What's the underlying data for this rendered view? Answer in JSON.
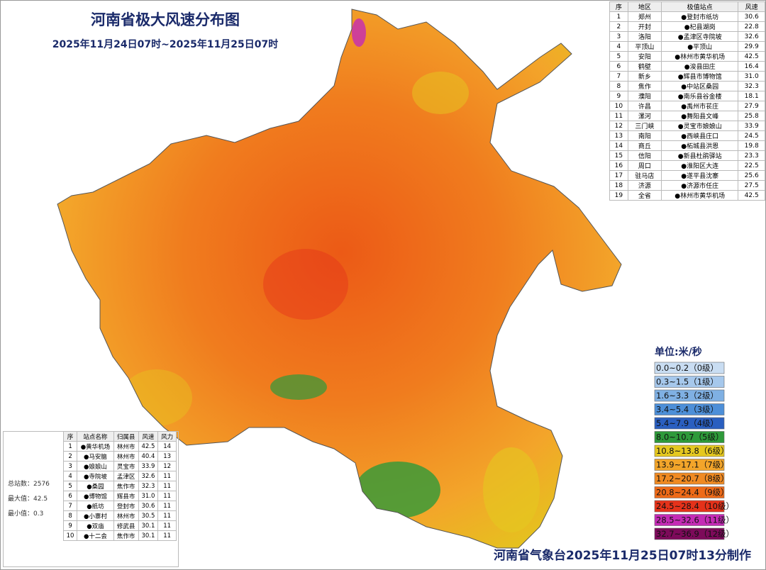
{
  "header": {
    "title": "河南省极大风速分布图",
    "subtitle": "2025年11月24日07时~2025年11月25日07时"
  },
  "city_table": {
    "columns": [
      "序",
      "地区",
      "极值站点",
      "风速"
    ],
    "rows": [
      [
        "1",
        "郑州",
        "●登封市纸坊",
        "30.6"
      ],
      [
        "2",
        "开封",
        "●杞县湖岗",
        "22.8"
      ],
      [
        "3",
        "洛阳",
        "●孟津区寺院坡",
        "32.6"
      ],
      [
        "4",
        "平顶山",
        "●平顶山",
        "29.9"
      ],
      [
        "5",
        "安阳",
        "●林州市黄华机场",
        "42.5"
      ],
      [
        "6",
        "鹤壁",
        "●浚县田庄",
        "16.4"
      ],
      [
        "7",
        "新乡",
        "●辉县市博物馆",
        "31.0"
      ],
      [
        "8",
        "焦作",
        "●中站区桑园",
        "32.3"
      ],
      [
        "9",
        "濮阳",
        "●南乐县谷金楼",
        "18.1"
      ],
      [
        "10",
        "许昌",
        "●禹州市苌庄",
        "27.9"
      ],
      [
        "11",
        "漯河",
        "●舞阳县文峰",
        "25.8"
      ],
      [
        "12",
        "三门峡",
        "●灵宝市娘娘山",
        "33.9"
      ],
      [
        "13",
        "南阳",
        "●西峡县庄口",
        "24.5"
      ],
      [
        "14",
        "商丘",
        "●柘城县洪恩",
        "19.8"
      ],
      [
        "15",
        "信阳",
        "●新县杜鹃驿站",
        "23.3"
      ],
      [
        "16",
        "周口",
        "●淮阳区大连",
        "22.5"
      ],
      [
        "17",
        "驻马店",
        "●遂平县沈寨",
        "25.6"
      ],
      [
        "18",
        "济源",
        "●济源市任庄",
        "27.5"
      ],
      [
        "19",
        "全省",
        "●林州市黄华机场",
        "42.5"
      ]
    ]
  },
  "station_table": {
    "columns": [
      "序",
      "站点名称",
      "归属县",
      "风速",
      "风力"
    ],
    "rows": [
      [
        "1",
        "●黄华机场",
        "林州市",
        "42.5",
        "14"
      ],
      [
        "2",
        "●马安脑",
        "林州市",
        "40.4",
        "13"
      ],
      [
        "3",
        "●娘娘山",
        "灵宝市",
        "33.9",
        "12"
      ],
      [
        "4",
        "●寺院坡",
        "孟津区",
        "32.6",
        "11"
      ],
      [
        "5",
        "●桑园",
        "焦作市",
        "32.3",
        "11"
      ],
      [
        "6",
        "●博物馆",
        "辉县市",
        "31.0",
        "11"
      ],
      [
        "7",
        "●纸坊",
        "登封市",
        "30.6",
        "11"
      ],
      [
        "8",
        "●小寨村",
        "林州市",
        "30.5",
        "11"
      ],
      [
        "9",
        "●双庙",
        "修武县",
        "30.1",
        "11"
      ],
      [
        "10",
        "●十二会",
        "焦作市",
        "30.1",
        "11"
      ]
    ]
  },
  "stats": [
    "总站数：2576",
    "最大值：42.5",
    "最小值：0.3"
  ],
  "legend": {
    "unit": "单位:米/秒",
    "items": [
      {
        "label": "0.0~0.2（0级）",
        "color": "#c9ddf2"
      },
      {
        "label": "0.3~1.5（1级）",
        "color": "#a6c8ec"
      },
      {
        "label": "1.6~3.3（2级）",
        "color": "#7fb0e3"
      },
      {
        "label": "3.4~5.4（3级）",
        "color": "#4d8fd8"
      },
      {
        "label": "5.4~7.9（4级）",
        "color": "#2a5fc0"
      },
      {
        "label": "8.0~10.7（5级）",
        "color": "#2e9a3a"
      },
      {
        "label": "10.8~13.8（6级）",
        "color": "#e5c81f"
      },
      {
        "label": "13.9~17.1（7级）",
        "color": "#f3a52a"
      },
      {
        "label": "17.2~20.7（8级）",
        "color": "#f08a22"
      },
      {
        "label": "20.8~24.4（9级）",
        "color": "#ee6a18"
      },
      {
        "label": "24.5~28.4（10级）",
        "color": "#e5321a"
      },
      {
        "label": "28.5~32.6（11级）",
        "color": "#c42bb5"
      },
      {
        "label": "32.7~36.9（12级）",
        "color": "#7d0a5a"
      }
    ]
  },
  "footer": "河南省气象台2025年11月25日07时13分制作"
}
